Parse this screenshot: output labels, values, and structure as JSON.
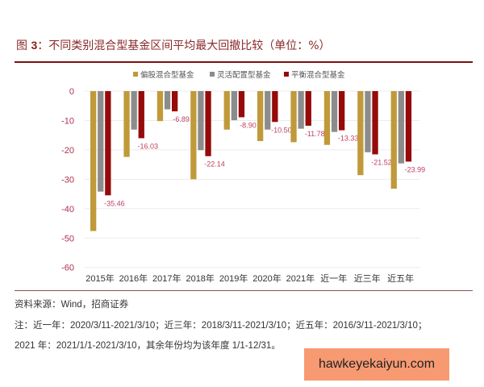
{
  "chart_data": {
    "type": "bar",
    "title": "图 3：不同类别混合型基金区间平均最大回撤比较（单位：%）",
    "categories": [
      "2015年",
      "2016年",
      "2017年",
      "2018年",
      "2019年",
      "2020年",
      "2021年",
      "近一年",
      "近三年",
      "近五年"
    ],
    "series": [
      {
        "name": "偏股混合型基金",
        "color": "#c09a3a",
        "values": [
          -47.6,
          -22.4,
          -10.2,
          -30.0,
          -13.1,
          -17.0,
          -17.4,
          -18.3,
          -28.6,
          -33.2
        ]
      },
      {
        "name": "灵活配置型基金",
        "color": "#8c8c8c",
        "values": [
          -34.2,
          -13.1,
          -6.2,
          -20.1,
          -9.9,
          -13.1,
          -12.8,
          -13.9,
          -20.8,
          -24.6
        ]
      },
      {
        "name": "平衡混合型基金",
        "color": "#960a0a",
        "values": [
          -35.46,
          -16.03,
          -6.89,
          -22.14,
          -8.9,
          -10.5,
          -11.78,
          -13.33,
          -21.52,
          -23.99
        ]
      }
    ],
    "data_labels": [
      "-35.46",
      "-16.03",
      "-6.89",
      "-22.14",
      "-8.90",
      "-10.50",
      "-11.78",
      "-13.33",
      "-21.52",
      "-23.99"
    ],
    "yticks": [
      "0",
      "-10",
      "-20",
      "-30",
      "-40",
      "-50",
      "-60"
    ],
    "ylim": [
      -60,
      0
    ],
    "grid": true,
    "legend": "top"
  },
  "header": {
    "fig": "图 ",
    "num": "3",
    "text": "：不同类别混合型基金区间平均最大回撤比较（单位：%）"
  },
  "footer": {
    "source": "资料来源：Wind，招商证券",
    "note1": "注：近一年：2020/3/11-2021/3/10；近三年：2018/3/11-2021/3/10；近五年：2016/3/11-2021/3/10；",
    "note2": "2021 年：2021/1/1-2021/3/10，其余年份均为该年度 1/1-12/31。"
  },
  "watermark": "hawkeyekaiyun.com"
}
